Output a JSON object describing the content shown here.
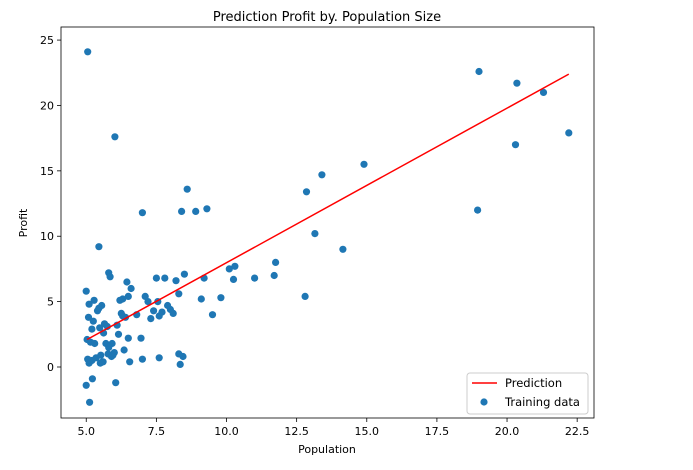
{
  "chart_data": {
    "type": "scatter",
    "title": "Prediction Profit by. Population Size",
    "xlabel": "Population",
    "ylabel": "Profit",
    "xlim": [
      4.1,
      23.1
    ],
    "ylim": [
      -3.9,
      26
    ],
    "xticks": [
      5.0,
      7.5,
      10.0,
      12.5,
      15.0,
      17.5,
      20.0,
      22.5
    ],
    "xtick_labels": [
      "5.0",
      "7.5",
      "10.0",
      "12.5",
      "15.0",
      "17.5",
      "20.0",
      "22.5"
    ],
    "yticks": [
      0,
      5,
      10,
      15,
      20,
      25
    ],
    "ytick_labels": [
      "0",
      "5",
      "10",
      "15",
      "20",
      "25"
    ],
    "grid": false,
    "legend_position": "lower-right",
    "colors": {
      "scatter": "#1f77b4",
      "line": "#ff0000"
    },
    "series": [
      {
        "name": "Prediction",
        "kind": "line",
        "x": [
          5.03,
          22.2
        ],
        "y": [
          2.1,
          22.4
        ]
      },
      {
        "name": "Training data",
        "kind": "scatter",
        "x": [
          5.0,
          5.03,
          5.05,
          5.08,
          5.1,
          5.15,
          5.2,
          5.22,
          5.25,
          5.3,
          5.35,
          5.4,
          5.45,
          5.48,
          5.5,
          5.52,
          5.55,
          5.6,
          5.62,
          5.65,
          5.7,
          5.75,
          5.78,
          5.8,
          5.85,
          5.9,
          5.92,
          5.95,
          6.0,
          6.02,
          6.1,
          6.15,
          6.2,
          6.25,
          6.3,
          6.35,
          6.4,
          6.45,
          6.5,
          6.55,
          6.6,
          6.8,
          7.0,
          7.1,
          7.2,
          7.3,
          7.4,
          7.5,
          7.55,
          7.6,
          7.7,
          7.8,
          7.9,
          8.0,
          8.1,
          8.2,
          8.3,
          8.35,
          8.4,
          8.5,
          8.6,
          8.9,
          9.1,
          9.2,
          9.3,
          9.5,
          9.8,
          10.1,
          10.25,
          10.3,
          11.0,
          11.7,
          11.75,
          12.8,
          12.85,
          13.15,
          13.4,
          14.15,
          14.9,
          18.95,
          19.0,
          20.3,
          20.35,
          21.3,
          22.2,
          5.05,
          5.12,
          5.28,
          5.58,
          6.05,
          7.0,
          8.45,
          8.3,
          5.0,
          5.1,
          5.2,
          6.3,
          6.95,
          7.6,
          5.45,
          5.8,
          6.5
        ],
        "y": [
          5.8,
          2.1,
          0.6,
          3.8,
          0.3,
          1.9,
          0.5,
          -0.9,
          3.5,
          1.8,
          0.7,
          4.3,
          9.2,
          3.0,
          0.3,
          0.9,
          4.7,
          0.4,
          2.6,
          3.3,
          1.8,
          3.1,
          1.0,
          7.2,
          6.9,
          0.8,
          1.8,
          0.9,
          1.1,
          17.6,
          3.2,
          2.5,
          5.1,
          4.1,
          5.2,
          1.3,
          3.8,
          6.5,
          5.4,
          0.4,
          6.0,
          4.0,
          11.8,
          5.4,
          5.0,
          3.7,
          4.3,
          6.8,
          5.0,
          3.9,
          4.2,
          6.8,
          4.7,
          4.4,
          4.1,
          6.6,
          5.6,
          0.2,
          11.9,
          7.1,
          13.6,
          11.9,
          5.2,
          6.8,
          12.1,
          4.0,
          5.3,
          7.5,
          6.7,
          7.7,
          6.8,
          7.0,
          8.0,
          5.4,
          13.4,
          10.2,
          14.7,
          9.0,
          15.5,
          12.0,
          22.6,
          17.0,
          21.7,
          21.0,
          17.9,
          24.1,
          -2.7,
          5.1,
          0.4,
          -1.2,
          0.6,
          0.8,
          1.0,
          -1.4,
          4.8,
          2.9,
          3.9,
          2.2,
          0.7,
          4.5,
          1.5,
          2.2
        ]
      }
    ]
  }
}
